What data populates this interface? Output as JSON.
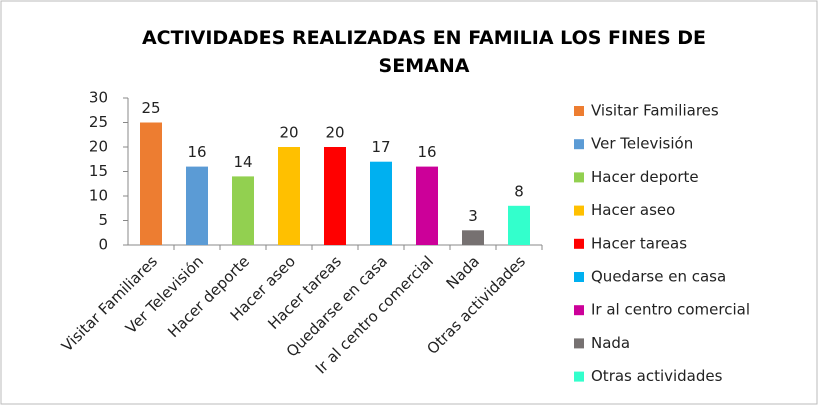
{
  "chart_data": {
    "type": "bar",
    "title": "ACTIVIDADES REALIZADAS EN FAMILIA LOS FINES DE SEMANA",
    "categories": [
      "Visitar Familiares",
      "Ver Televisión",
      "Hacer deporte",
      "Hacer aseo",
      "Hacer tareas",
      "Quedarse en casa",
      "Ir al centro comercial",
      "Nada",
      "Otras actividades"
    ],
    "values": [
      25,
      16,
      14,
      20,
      20,
      17,
      16,
      3,
      8
    ],
    "colors": [
      "#ED7D31",
      "#5B9BD5",
      "#92D050",
      "#FFC000",
      "#FF0000",
      "#00B0F0",
      "#CC0099",
      "#767171",
      "#33FFCC"
    ],
    "ylim": [
      0,
      30
    ],
    "yticks": [
      0,
      5,
      10,
      15,
      20,
      25,
      30
    ],
    "grid": false,
    "legend": "right"
  }
}
